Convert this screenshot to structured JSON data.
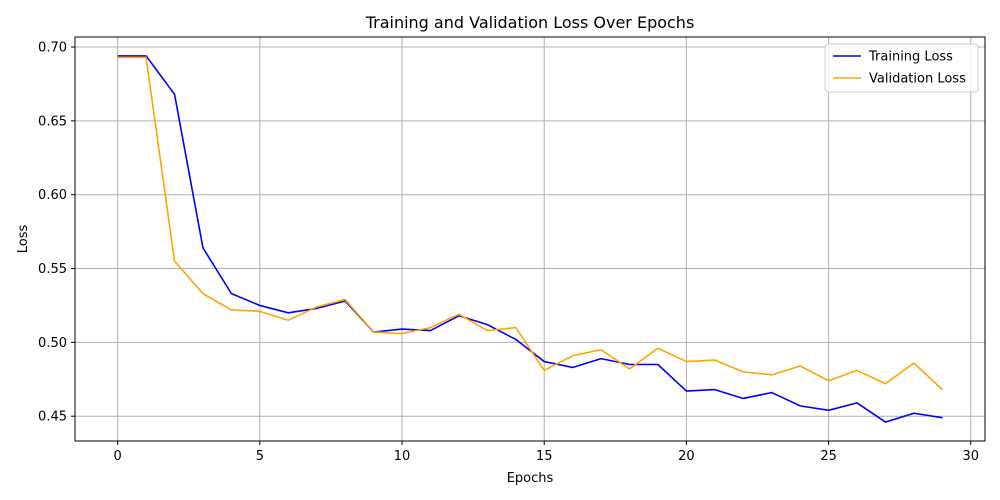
{
  "chart_data": {
    "type": "line",
    "title": "Training and Validation Loss Over Epochs",
    "xlabel": "Epochs",
    "ylabel": "Loss",
    "xlim": [
      -1.5,
      30.5
    ],
    "ylim": [
      0.4332,
      0.7068
    ],
    "xticks": [
      0,
      5,
      10,
      15,
      20,
      25,
      30
    ],
    "yticks": [
      0.45,
      0.5,
      0.55,
      0.6,
      0.65,
      0.7
    ],
    "ytick_labels": [
      "0.45",
      "0.50",
      "0.55",
      "0.60",
      "0.65",
      "0.70"
    ],
    "grid": true,
    "legend_position": "top-right",
    "x": [
      0,
      1,
      2,
      3,
      4,
      5,
      6,
      7,
      8,
      9,
      10,
      11,
      12,
      13,
      14,
      15,
      16,
      17,
      18,
      19,
      20,
      21,
      22,
      23,
      24,
      25,
      26,
      27,
      28,
      29
    ],
    "series": [
      {
        "name": "Training Loss",
        "color": "#0000ff",
        "values": [
          0.694,
          0.694,
          0.668,
          0.564,
          0.533,
          0.525,
          0.52,
          0.523,
          0.528,
          0.507,
          0.509,
          0.508,
          0.518,
          0.512,
          0.502,
          0.487,
          0.483,
          0.489,
          0.485,
          0.485,
          0.467,
          0.468,
          0.462,
          0.466,
          0.457,
          0.454,
          0.459,
          0.446,
          0.452,
          0.449
        ]
      },
      {
        "name": "Validation Loss",
        "color": "#ffa500",
        "values": [
          0.693,
          0.693,
          0.555,
          0.533,
          0.522,
          0.521,
          0.515,
          0.524,
          0.529,
          0.507,
          0.506,
          0.51,
          0.519,
          0.508,
          0.51,
          0.481,
          0.491,
          0.495,
          0.482,
          0.496,
          0.487,
          0.488,
          0.48,
          0.478,
          0.484,
          0.474,
          0.481,
          0.472,
          0.486,
          0.468
        ]
      }
    ]
  }
}
